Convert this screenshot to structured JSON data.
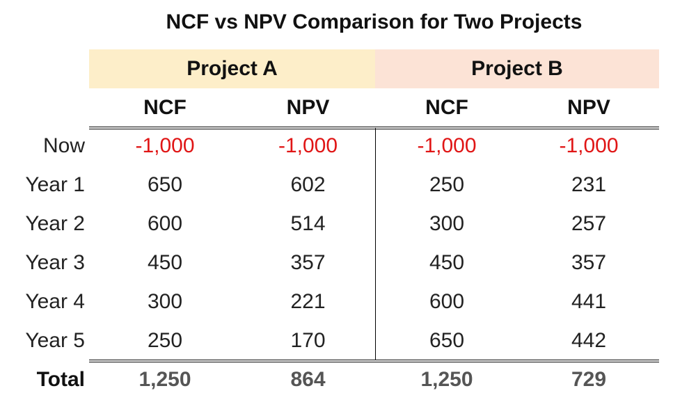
{
  "title": "NCF vs NPV Comparison for Two Projects",
  "projects": [
    {
      "name": "Project A",
      "color": "#fdeec9"
    },
    {
      "name": "Project B",
      "color": "#fce3d6"
    }
  ],
  "columns": [
    "NCF",
    "NPV",
    "NCF",
    "NPV"
  ],
  "rows": [
    {
      "label": "Now",
      "values": [
        "-1,000",
        "-1,000",
        "-1,000",
        "-1,000"
      ]
    },
    {
      "label": "Year 1",
      "values": [
        "650",
        "602",
        "250",
        "231"
      ]
    },
    {
      "label": "Year 2",
      "values": [
        "600",
        "514",
        "300",
        "257"
      ]
    },
    {
      "label": "Year 3",
      "values": [
        "450",
        "357",
        "450",
        "357"
      ]
    },
    {
      "label": "Year 4",
      "values": [
        "300",
        "221",
        "600",
        "441"
      ]
    },
    {
      "label": "Year 5",
      "values": [
        "250",
        "170",
        "650",
        "442"
      ]
    }
  ],
  "total": {
    "label": "Total",
    "values": [
      "1,250",
      "864",
      "1,250",
      "729"
    ]
  },
  "negative_color": "#e01515"
}
